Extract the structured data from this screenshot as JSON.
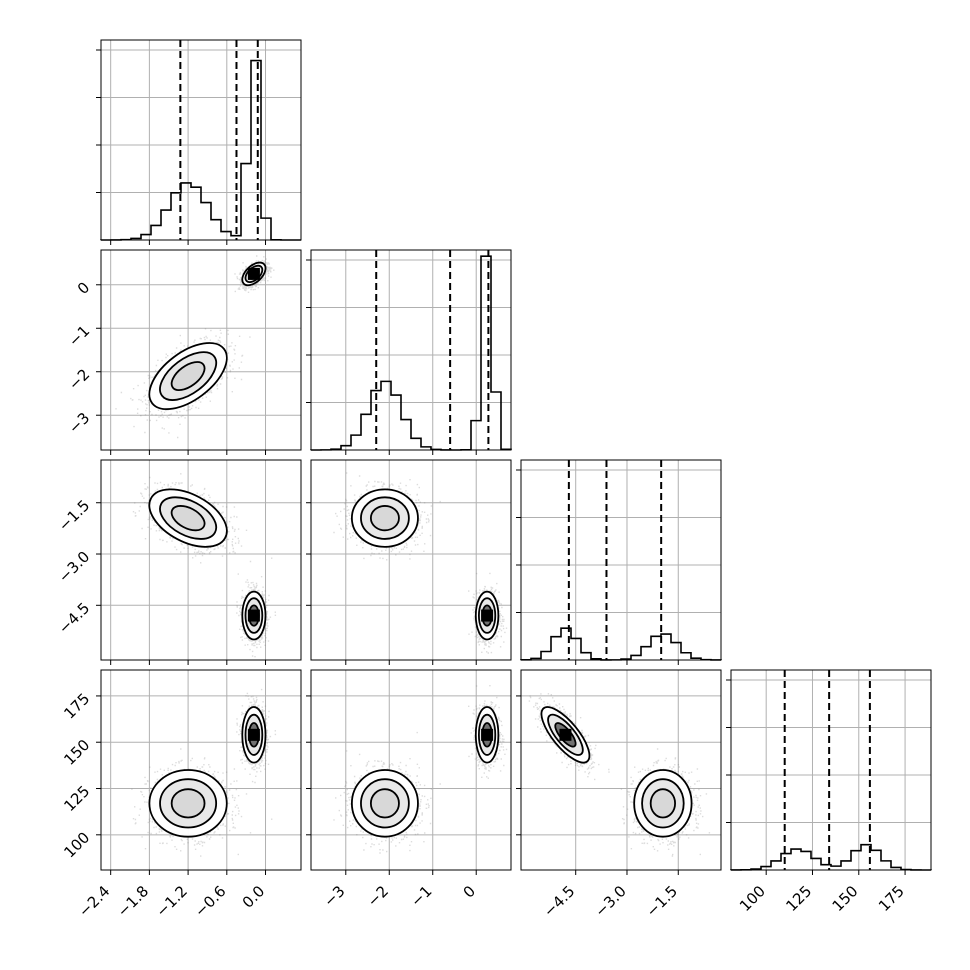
{
  "chart_data": {
    "type": "corner",
    "title": "",
    "grid": true,
    "colors": {
      "line": "#000000",
      "grid": "#b0b0b0",
      "scatter": "#808080"
    },
    "params": [
      {
        "xlim": [
          -2.55,
          0.55
        ],
        "ticks": [
          -2.4,
          -1.8,
          -1.2,
          -0.6,
          0.0
        ],
        "tick_labels": [
          "−2.4",
          "−1.8",
          "−1.2",
          "−0.6",
          "0.0"
        ]
      },
      {
        "xlim": [
          -3.8,
          0.8
        ],
        "ticks": [
          -3,
          -2,
          -1,
          0
        ],
        "tick_labels": [
          "−3",
          "−2",
          "−1",
          "0"
        ]
      },
      {
        "xlim": [
          -6.1,
          -0.25
        ],
        "ticks": [
          -4.5,
          -3.0,
          -1.5
        ],
        "tick_labels": [
          "−4.5",
          "−3.0",
          "−1.5"
        ]
      },
      {
        "xlim": [
          81,
          189
        ],
        "ticks": [
          100,
          125,
          150,
          175
        ],
        "tick_labels": [
          "100",
          "125",
          "150",
          "175"
        ]
      }
    ],
    "quantile_lines": [
      [
        -1.32,
        -0.45,
        -0.12
      ],
      [
        -2.3,
        -0.6,
        0.28
      ],
      [
        -4.7,
        -3.6,
        -2.0
      ],
      [
        110,
        134,
        156
      ]
    ],
    "clusters": [
      {
        "weight": 0.5,
        "means": [
          -1.2,
          -2.1,
          -1.95,
          117
        ],
        "sds": [
          0.3,
          0.38,
          0.42,
          9.0
        ],
        "corr": [
          [
            0,
            1,
            0.55
          ],
          [
            0,
            2,
            -0.45
          ],
          [
            2,
            3,
            0
          ]
        ]
      },
      {
        "weight": 0.5,
        "means": [
          -0.18,
          0.25,
          -4.8,
          154
        ],
        "sds": [
          0.09,
          0.13,
          0.35,
          7.5
        ],
        "corr": [
          [
            0,
            1,
            0.5
          ],
          [
            2,
            3,
            -0.75
          ]
        ]
      }
    ],
    "hist_max": [
      2.2,
      1.45,
      3.4,
      0.2
    ]
  }
}
